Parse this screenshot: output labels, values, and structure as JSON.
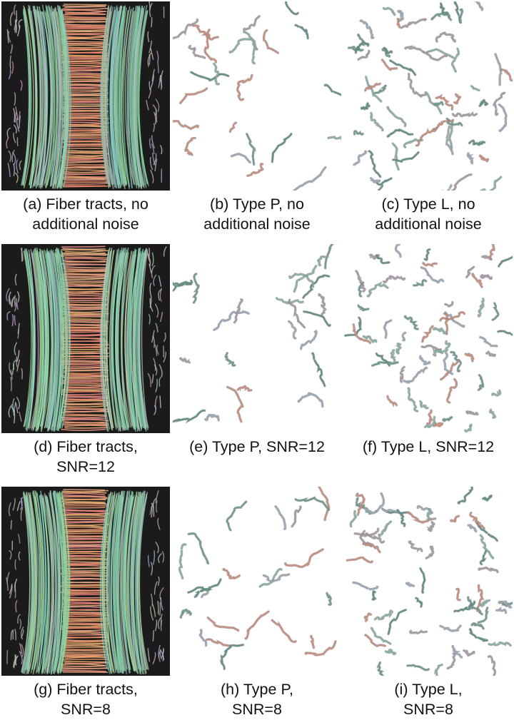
{
  "figure": {
    "panels": [
      {
        "id": "a",
        "kind": "tracts",
        "caption": [
          "(a) Fiber tracts, no",
          "additional noise"
        ]
      },
      {
        "id": "b",
        "kind": "typeP",
        "caption": [
          "(b) Type P, no",
          "additional noise"
        ]
      },
      {
        "id": "c",
        "kind": "typeL",
        "caption": [
          "(c) Type L, no",
          "additional noise"
        ]
      },
      {
        "id": "d",
        "kind": "tracts",
        "caption": [
          "(d) Fiber tracts,",
          "SNR=12"
        ]
      },
      {
        "id": "e",
        "kind": "typeP",
        "caption": [
          "(e) Type P, SNR=12",
          ""
        ]
      },
      {
        "id": "f",
        "kind": "typeL",
        "caption": [
          "(f) Type L, SNR=12",
          ""
        ]
      },
      {
        "id": "g",
        "kind": "tracts",
        "caption": [
          "(g) Fiber tracts,",
          "SNR=8"
        ]
      },
      {
        "id": "h",
        "kind": "typeP",
        "caption": [
          "(h) Type P,",
          "SNR=8"
        ]
      },
      {
        "id": "i",
        "kind": "typeL",
        "caption": [
          "(i) Type L,",
          "SNR=8"
        ]
      }
    ]
  }
}
